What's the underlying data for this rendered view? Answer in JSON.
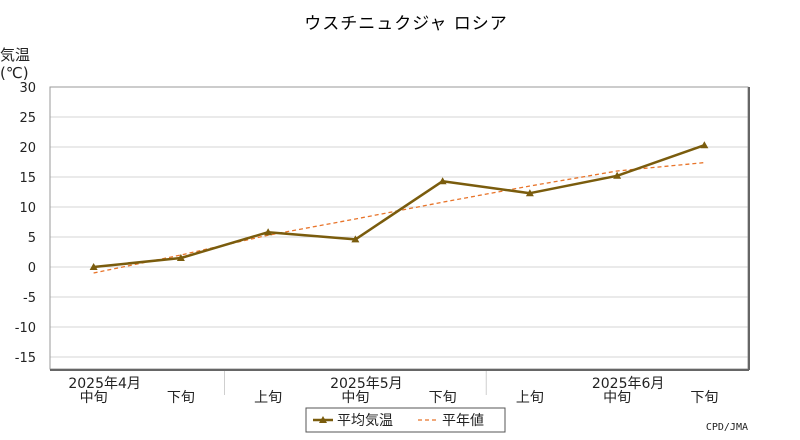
{
  "chart_data": {
    "type": "line",
    "title": "ウスチニュクジャ ロシア",
    "ylabel": "気温",
    "yunit": "(℃)",
    "ylim": [
      -17,
      30
    ],
    "yticks": [
      30,
      25,
      20,
      15,
      10,
      5,
      0,
      -5,
      -10,
      -15
    ],
    "categories": [
      "中旬",
      "下旬",
      "上旬",
      "中旬",
      "下旬",
      "上旬",
      "中旬",
      "下旬"
    ],
    "month_labels": [
      {
        "label": "2025年4月",
        "index": 0
      },
      {
        "label": "2025年5月",
        "index": 3
      },
      {
        "label": "2025年6月",
        "index": 6
      }
    ],
    "month_boundaries": [
      1.5,
      4.5
    ],
    "series": [
      {
        "name": "平均気温",
        "color": "#7a5c0d",
        "style": "solid",
        "marker": "triangle",
        "values": [
          0.0,
          1.5,
          5.8,
          4.6,
          14.3,
          12.3,
          15.2,
          20.3
        ]
      },
      {
        "name": "平年値",
        "color": "#e8742a",
        "style": "dashed",
        "values": [
          -1.0,
          2.0,
          5.3,
          8.0,
          10.8,
          13.5,
          16.0,
          17.4
        ]
      }
    ],
    "grid": true,
    "legend": "bottom-center",
    "credit": "CPD/JMA"
  }
}
